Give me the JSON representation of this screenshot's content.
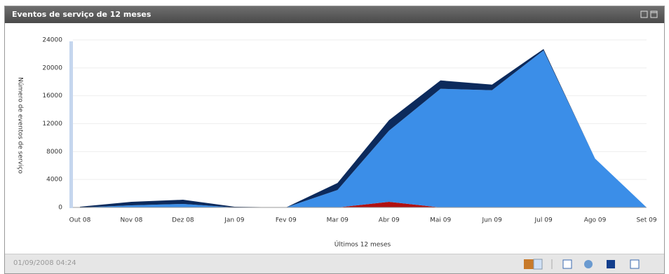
{
  "header": {
    "title": "Eventos de serviço de 12 meses"
  },
  "footer": {
    "timestamp": "01/09/2008 04:24"
  },
  "chart_data": {
    "type": "stacked_area",
    "x_label": "Últimos 12 meses",
    "y_label": "Número de eventos de serviço",
    "categories": [
      "Out 08",
      "Nov 08",
      "Dez 08",
      "Jan 09",
      "Fev 09",
      "Mar 09",
      "Abr 09",
      "Mai 09",
      "Jun 09",
      "Jul 09",
      "Ago 09",
      "Set 09"
    ],
    "series": [
      {
        "color": "#b01010",
        "values": [
          0,
          0,
          0,
          0,
          0,
          0,
          800,
          0,
          0,
          0,
          0,
          0
        ]
      },
      {
        "color": "#3b8ee8",
        "values": [
          0,
          300,
          500,
          0,
          0,
          2500,
          10200,
          17000,
          16800,
          22500,
          7000,
          0
        ]
      },
      {
        "color": "#0c2a5c",
        "values": [
          100,
          500,
          600,
          100,
          0,
          1000,
          1500,
          1200,
          800,
          200,
          0,
          0
        ]
      }
    ],
    "ylim": [
      0,
      24000
    ],
    "yticks": [
      0,
      4000,
      8000,
      12000,
      16000,
      20000,
      24000
    ],
    "grid": true
  }
}
